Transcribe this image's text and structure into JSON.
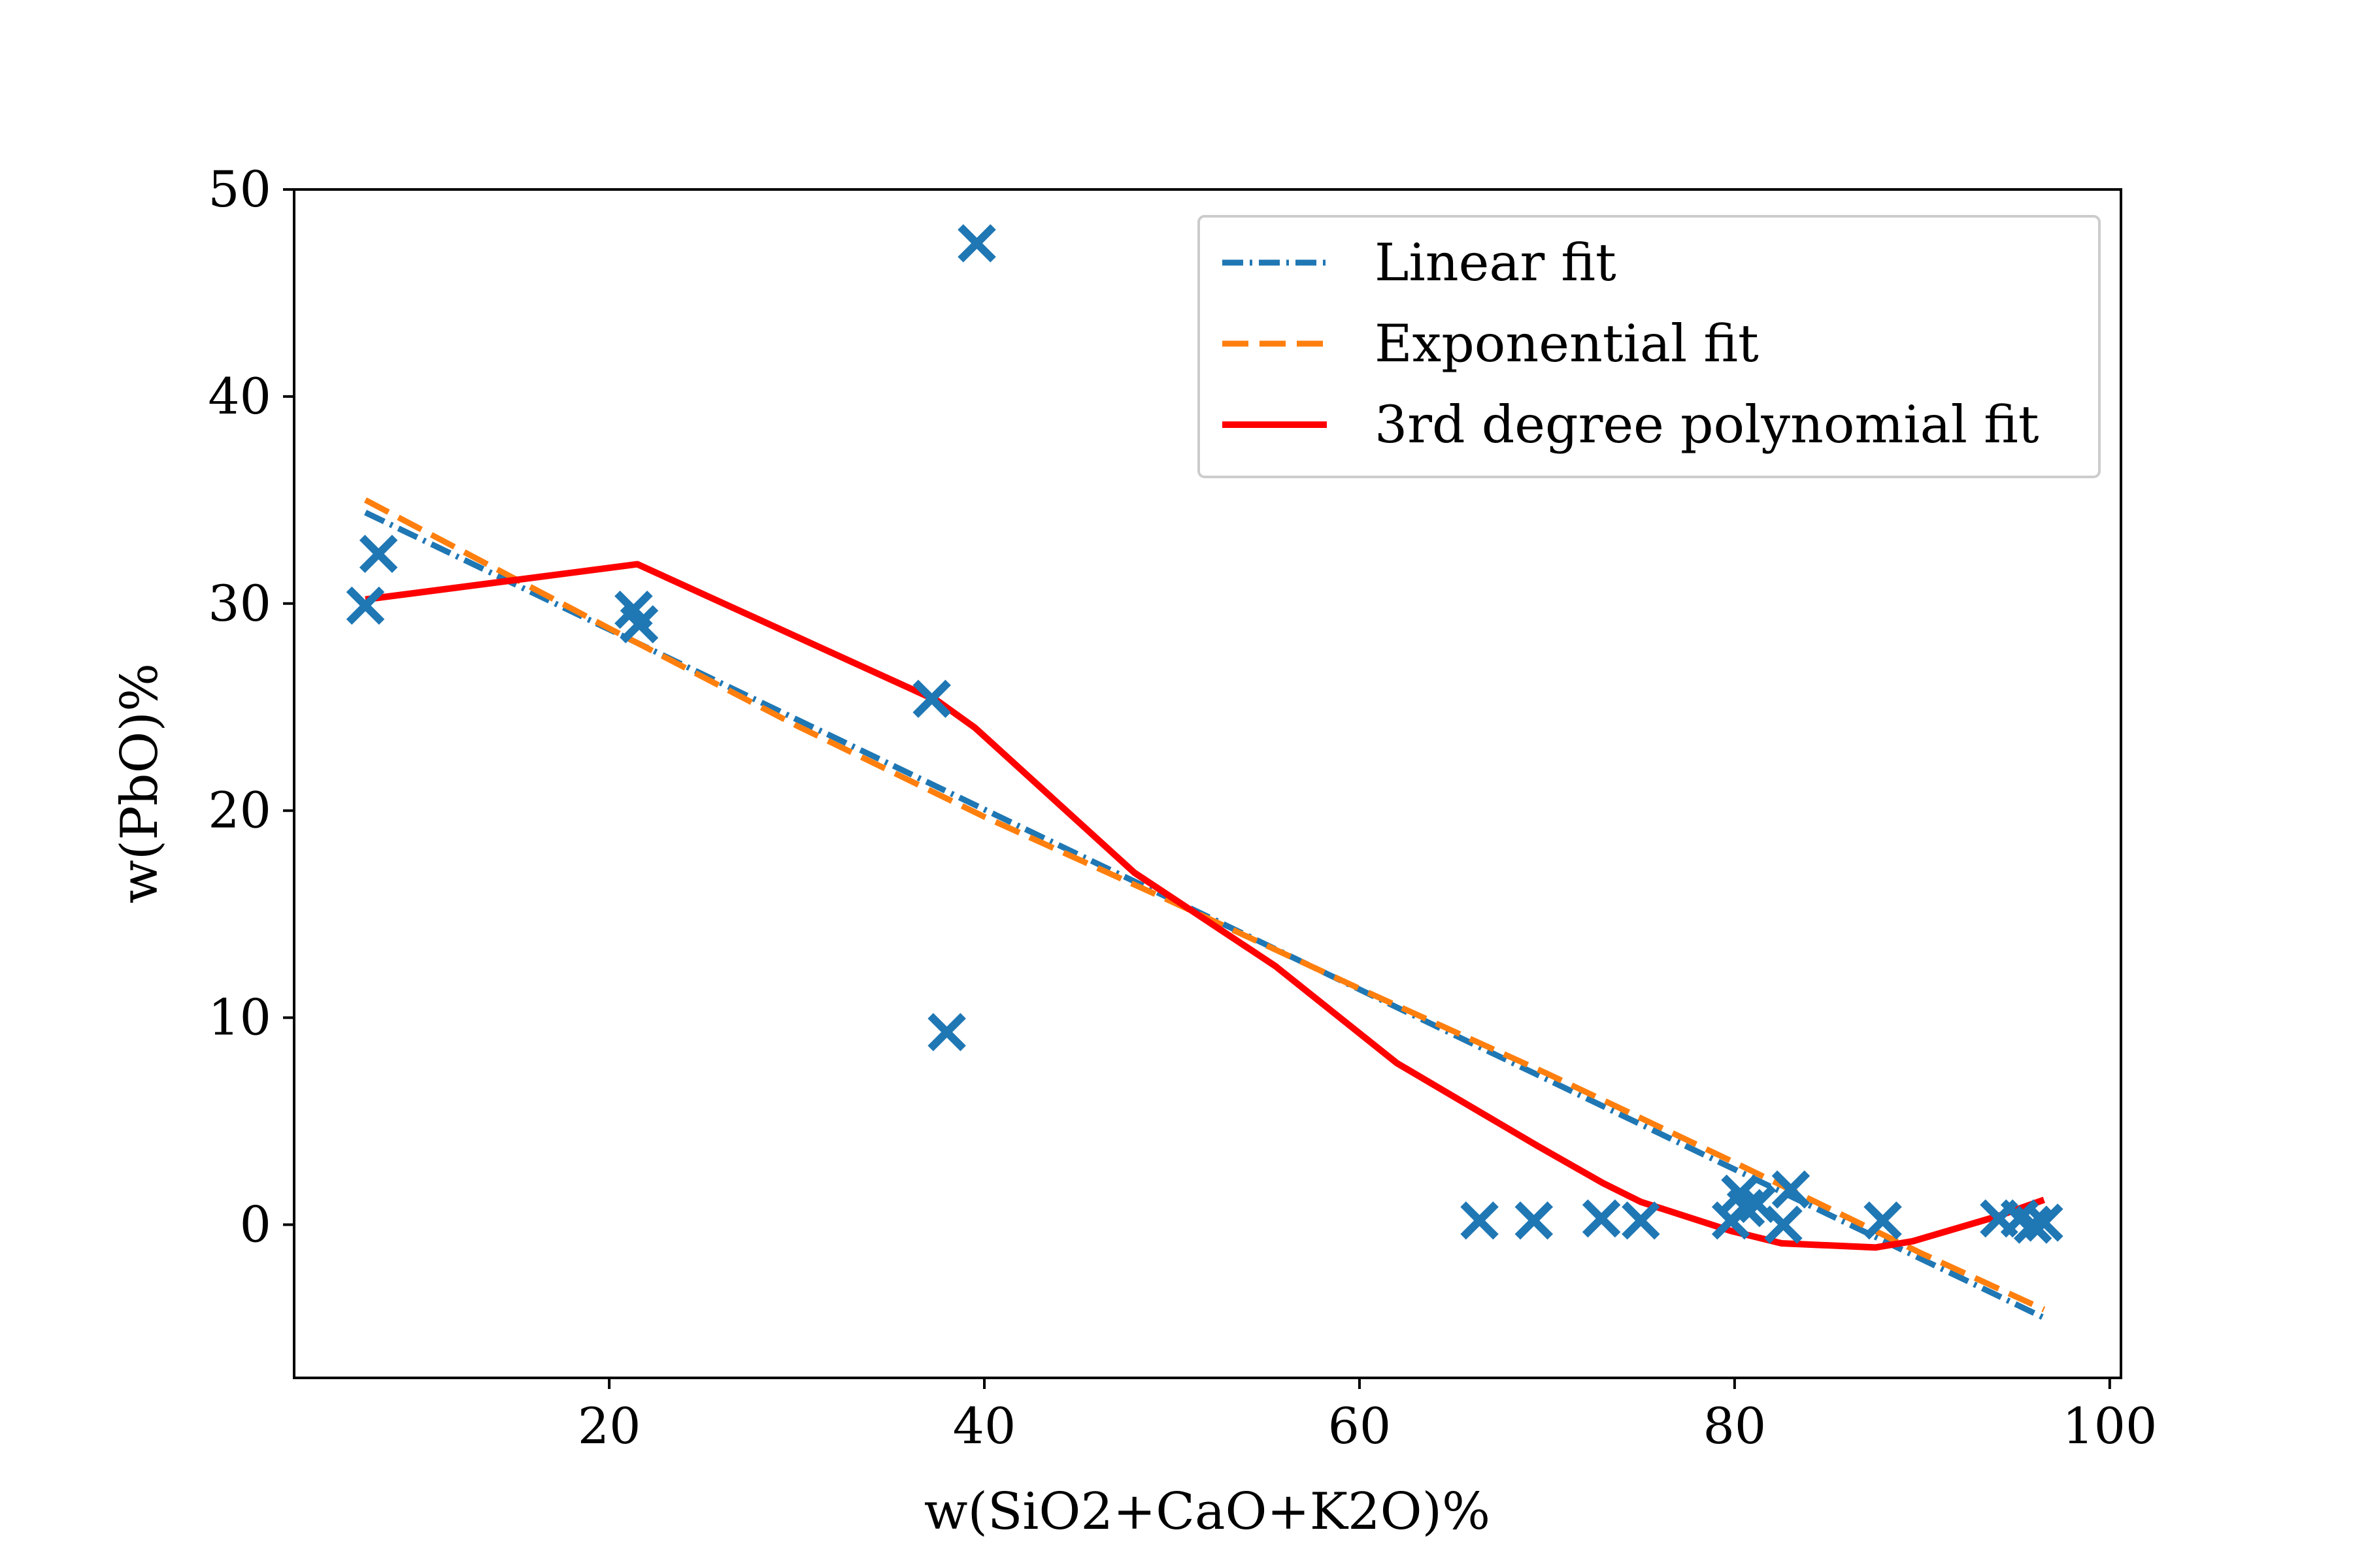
{
  "chart_data": {
    "type": "scatter",
    "xlabel": "w(SiO2+CaO+K2O)%",
    "ylabel": "w(PbO)%",
    "xlim": [
      3.2,
      100.6
    ],
    "ylim": [
      -7.4,
      50
    ],
    "xticks": [
      20,
      40,
      60,
      80,
      100
    ],
    "yticks": [
      0,
      10,
      20,
      30,
      40,
      50
    ],
    "grid": false,
    "legend_position": "upper right",
    "points": {
      "marker": "X",
      "color": "#1f77b4",
      "x": [
        7.0,
        7.7,
        21.3,
        21.6,
        37.2,
        38.0,
        39.6,
        66.4,
        69.3,
        72.9,
        75.0,
        79.8,
        80.3,
        80.6,
        81.2,
        82.6,
        83.0,
        87.9,
        94.1,
        95.2,
        95.9,
        96.5
      ],
      "y": [
        29.9,
        32.4,
        29.7,
        29.0,
        25.4,
        9.3,
        47.4,
        0.2,
        0.2,
        0.3,
        0.2,
        0.2,
        1.5,
        0.8,
        1.0,
        0.0,
        1.7,
        0.2,
        0.3,
        0.3,
        0.0,
        0.1
      ]
    },
    "series": [
      {
        "name": "Linear fit",
        "style": "dash-dot",
        "color": "#1f77b4",
        "x": [
          7.0,
          96.5
        ],
        "y": [
          34.4,
          -4.5
        ]
      },
      {
        "name": "Exponential fit",
        "style": "dashed",
        "color": "#ff7f0e",
        "x": [
          7.0,
          20,
          30,
          40,
          50,
          60,
          70,
          80,
          90,
          96.5
        ],
        "y": [
          35.0,
          28.8,
          24.1,
          19.7,
          15.6,
          11.4,
          7.3,
          3.0,
          -1.4,
          -4.1
        ]
      },
      {
        "name": "3rd degree polynomial fit",
        "style": "solid",
        "color": "#ff0000",
        "x": [
          7.0,
          21.5,
          37.5,
          39.5,
          48,
          55.5,
          62,
          66.5,
          69.5,
          73,
          75,
          79.8,
          82.5,
          87.5,
          89.5,
          94,
          96.5
        ],
        "y": [
          30.2,
          31.9,
          25.3,
          24.0,
          17.0,
          12.5,
          7.8,
          5.4,
          3.8,
          2.0,
          1.1,
          -0.3,
          -0.9,
          -1.1,
          -0.8,
          0.4,
          1.2
        ]
      }
    ]
  }
}
